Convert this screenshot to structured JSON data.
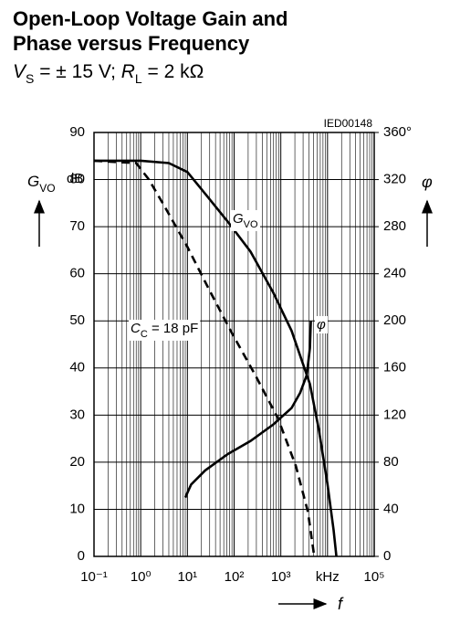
{
  "chart_data": {
    "type": "line",
    "title": [
      "Open-Loop Voltage Gain and",
      "Phase versus Frequency"
    ],
    "subtitle": [
      "V",
      "S",
      " = ± 15 V; ",
      "R",
      "L",
      " = 2 kΩ"
    ],
    "annotation": "IED00148",
    "ylabel": [
      "G",
      "VO"
    ],
    "yunit": "dB",
    "y2label": "φ",
    "xlabel": "f",
    "xscale": "log",
    "grid": true,
    "xlim": [
      0.1,
      100000
    ],
    "xticks": [
      {
        "value": 0.1,
        "label": "10⁻¹"
      },
      {
        "value": 1,
        "label": "10⁰"
      },
      {
        "value": 10,
        "label": "10¹"
      },
      {
        "value": 100,
        "label": "10²"
      },
      {
        "value": 1000,
        "label": "10³"
      },
      {
        "value": 10000,
        "label": "kHz"
      },
      {
        "value": 100000,
        "label": "10⁵"
      }
    ],
    "ylim": [
      0,
      90
    ],
    "yticks": [
      0,
      10,
      20,
      30,
      40,
      50,
      60,
      70,
      80,
      90
    ],
    "y2lim": [
      0,
      360
    ],
    "y2ticks": [
      0,
      40,
      80,
      120,
      160,
      200,
      240,
      280,
      320,
      {
        "value": 360,
        "label": "360°"
      }
    ],
    "series": [
      {
        "name": [
          "G",
          "VO"
        ],
        "color": "#000000",
        "linestyle": "solid",
        "x": [
          0.1,
          1,
          4,
          10,
          24,
          74,
          225,
          690,
          1700,
          4200,
          6500,
          10000,
          13500,
          15500
        ],
        "values": [
          84,
          84,
          83.5,
          81.6,
          77,
          71,
          64.7,
          56,
          47.9,
          36.6,
          27,
          15.3,
          5.6,
          0
        ]
      },
      {
        "name": [
          "C",
          "C",
          " = 18 pF"
        ],
        "color": "#000000",
        "linestyle": "dashed",
        "x": [
          0.1,
          0.8,
          1.5,
          3.2,
          10,
          30,
          91,
          280,
          870,
          2100,
          3800,
          5200
        ],
        "values": [
          84,
          83.5,
          80,
          74.4,
          65.7,
          56.4,
          47.3,
          38.6,
          29.3,
          19.2,
          9.5,
          0
        ]
      },
      {
        "name": [
          "φ"
        ],
        "color": "#000000",
        "linestyle": "solid",
        "axis": "y2",
        "x": [
          9,
          12,
          24,
          74,
          225,
          690,
          1700,
          2600,
          3600,
          4200,
          4400
        ],
        "values": [
          50,
          61,
          73,
          87,
          98,
          112,
          126,
          139,
          154,
          177,
          200
        ]
      }
    ]
  }
}
